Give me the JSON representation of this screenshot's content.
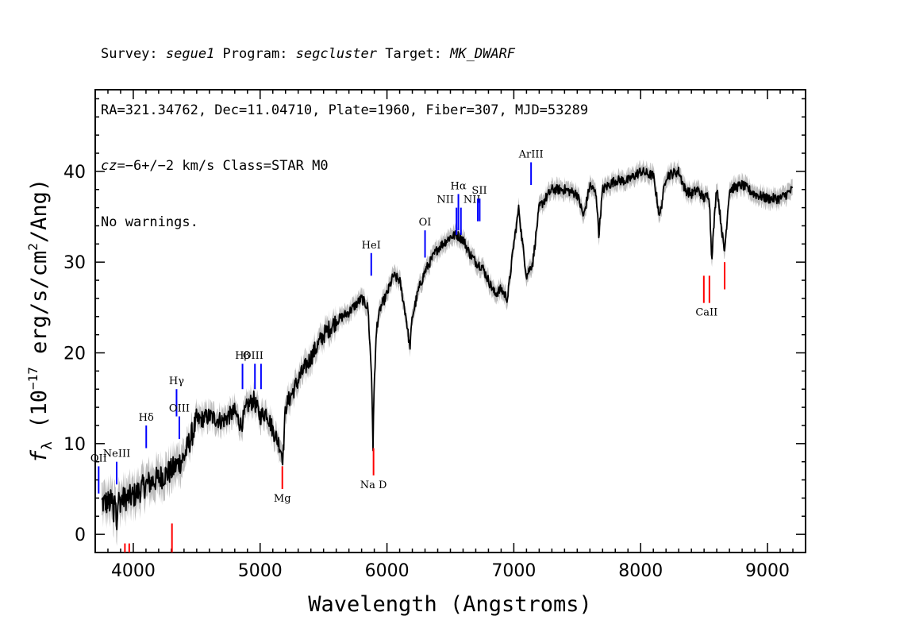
{
  "header": {
    "line1": {
      "survey_label": "Survey: ",
      "survey": "segue1",
      "program_label": " Program: ",
      "program": "segcluster",
      "target_label": " Target: ",
      "target": "MK_DWARF"
    },
    "line2": "RA=321.34762, Dec=11.04710, Plate=1960, Fiber=307, MJD=53289",
    "line3": {
      "cz_prefix": "cz",
      "cz_value": "=−6+/−2",
      "cz_rest": " km/s Class=STAR M0"
    },
    "line4": "No warnings."
  },
  "chart_data": {
    "type": "line",
    "title": "",
    "xlabel": "Wavelength (Angstroms)",
    "ylabel_parts": {
      "f": "f",
      "sub": "λ",
      "a": " (10",
      "exp": "−17",
      "b": " erg/s/cm",
      "exp2": "2",
      "c": "/Ang)"
    },
    "xlim": [
      3700,
      9300
    ],
    "ylim": [
      -2,
      49
    ],
    "xticks": [
      4000,
      5000,
      6000,
      7000,
      8000,
      9000
    ],
    "yticks": [
      0,
      10,
      20,
      30,
      40
    ],
    "grid": false,
    "spectrum_x": [
      3800,
      3900,
      4000,
      4100,
      4200,
      4300,
      4400,
      4500,
      4600,
      4700,
      4800,
      4850,
      4900,
      4950,
      5000,
      5050,
      5100,
      5150,
      5180,
      5200,
      5250,
      5300,
      5400,
      5500,
      5600,
      5700,
      5800,
      5850,
      5880,
      5890,
      5900,
      5920,
      5950,
      6000,
      6050,
      6100,
      6150,
      6180,
      6200,
      6250,
      6300,
      6400,
      6500,
      6550,
      6600,
      6650,
      6700,
      6750,
      6800,
      6850,
      6900,
      6950,
      7000,
      7040,
      7060,
      7100,
      7150,
      7200,
      7300,
      7400,
      7500,
      7550,
      7600,
      7650,
      7670,
      7700,
      7800,
      7900,
      8000,
      8100,
      8150,
      8200,
      8300,
      8350,
      8400,
      8450,
      8500,
      8540,
      8560,
      8600,
      8660,
      8700,
      8800,
      8900,
      9000,
      9100,
      9200
    ],
    "spectrum_y": [
      3.5,
      3.8,
      4.2,
      5.5,
      6.2,
      7,
      8.5,
      12.5,
      13,
      12.5,
      13.5,
      12,
      14.2,
      14.8,
      13,
      13.5,
      11.5,
      10,
      8.5,
      14,
      15.5,
      17,
      19.5,
      22,
      23.5,
      24.5,
      26,
      25,
      17,
      9.5,
      17,
      23,
      25,
      26.5,
      28.5,
      28,
      24,
      20.5,
      24,
      27,
      29,
      31.5,
      32.8,
      33,
      32.5,
      31,
      30,
      29.5,
      28,
      26.5,
      27,
      26,
      32,
      36,
      33,
      28.5,
      30,
      36,
      38,
      38,
      37.5,
      35,
      38.5,
      37.5,
      33,
      38,
      39,
      39,
      40,
      39.5,
      35,
      39.5,
      40,
      38,
      37.5,
      38,
      37,
      37.5,
      30.5,
      38.5,
      31,
      38,
      38.5,
      37.5,
      37,
      37,
      38
    ],
    "emission_lines": [
      {
        "label": "OII",
        "x": 3727,
        "y_low": 4.5,
        "y_high": 7.5
      },
      {
        "label": "NeIII",
        "x": 3869,
        "y_low": 5.5,
        "y_high": 8
      },
      {
        "label": "Hδ",
        "x": 4102,
        "y_low": 9.5,
        "y_high": 12
      },
      {
        "label": "Hγ",
        "x": 4341,
        "y_low": 13,
        "y_high": 16
      },
      {
        "label": "OIII",
        "x": 4363,
        "y_low": 10.5,
        "y_high": 13
      },
      {
        "label": "Hβ",
        "x": 4861,
        "y_low": 16,
        "y_high": 18.8
      },
      {
        "label": "OIII",
        "x": 4959,
        "y_low": 16,
        "y_high": 18.8
      },
      {
        "label": "OIII",
        "x": 5007,
        "y_low": 16,
        "y_high": 18.8
      },
      {
        "label": "HeI",
        "x": 5876,
        "y_low": 28.5,
        "y_high": 31
      },
      {
        "label": "OI",
        "x": 6300,
        "y_low": 30.5,
        "y_high": 33.5
      },
      {
        "label": "NII",
        "x": 6548,
        "y_low": 33,
        "y_high": 36
      },
      {
        "label": "Hα",
        "x": 6563,
        "y_low": 33.5,
        "y_high": 37.5
      },
      {
        "label": "NII",
        "x": 6583,
        "y_low": 33,
        "y_high": 36
      },
      {
        "label": "SII",
        "x": 6716,
        "y_low": 34.5,
        "y_high": 37
      },
      {
        "label": "SII",
        "x": 6731,
        "y_low": 34.5,
        "y_high": 37
      },
      {
        "label": "ArIII",
        "x": 7136,
        "y_low": 38.5,
        "y_high": 41
      }
    ],
    "absorption_lines": [
      {
        "label": "",
        "x": 3934,
        "y_low": -2,
        "y_high": -1
      },
      {
        "label": "",
        "x": 3968,
        "y_low": -2,
        "y_high": -1
      },
      {
        "label": "",
        "x": 4305,
        "y_low": -2,
        "y_high": 1.2
      },
      {
        "label": "Mg",
        "x": 5175,
        "y_low": 5,
        "y_high": 7.5
      },
      {
        "label": "Na D",
        "x": 5894,
        "y_low": 6.5,
        "y_high": 9.5
      },
      {
        "label": "CaII",
        "x": 8498,
        "y_low": 25.5,
        "y_high": 28.5
      },
      {
        "label": "CaII",
        "x": 8542,
        "y_low": 25.5,
        "y_high": 28.5
      },
      {
        "label": "CaII",
        "x": 8662,
        "y_low": 27,
        "y_high": 30
      }
    ],
    "colors": {
      "spectrum": "#000000",
      "error_band": "#bdbdbd",
      "emission": "#0000ff",
      "absorption": "#ff0000"
    }
  }
}
